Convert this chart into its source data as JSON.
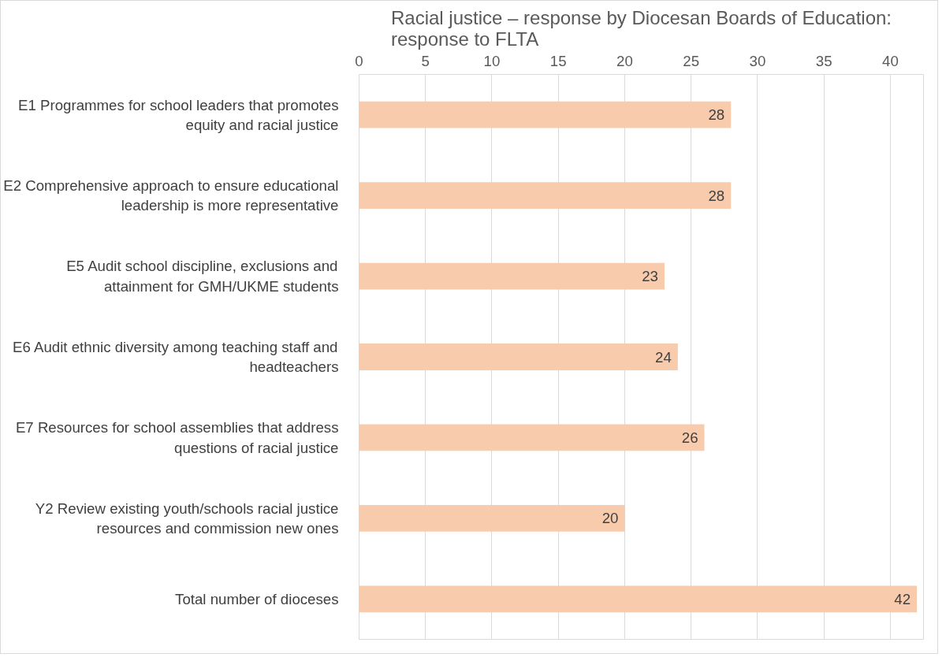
{
  "chart_data": {
    "type": "bar",
    "orientation": "horizontal",
    "title": "Racial justice – response by Diocesan Boards of Education: response to FLTA",
    "categories": [
      "E1 Programmes for school leaders that promotes equity and racial justice",
      "E2 Comprehensive approach to ensure educational leadership is more representative",
      "E5 Audit school discipline, exclusions and attainment for GMH/UKME students",
      "E6 Audit ethnic diversity among teaching staff and headteachers",
      "E7 Resources for school assemblies that address questions of racial justice",
      "Y2 Review existing youth/schools racial justice resources and commission new ones",
      "Total number of dioceses"
    ],
    "values": [
      28,
      28,
      23,
      24,
      26,
      20,
      42
    ],
    "color": "#f8cbad",
    "xlim": [
      0,
      42.5
    ],
    "xticks": [
      0,
      5,
      10,
      15,
      20,
      25,
      30,
      35,
      40
    ],
    "grid": "x",
    "data_labels": true
  }
}
